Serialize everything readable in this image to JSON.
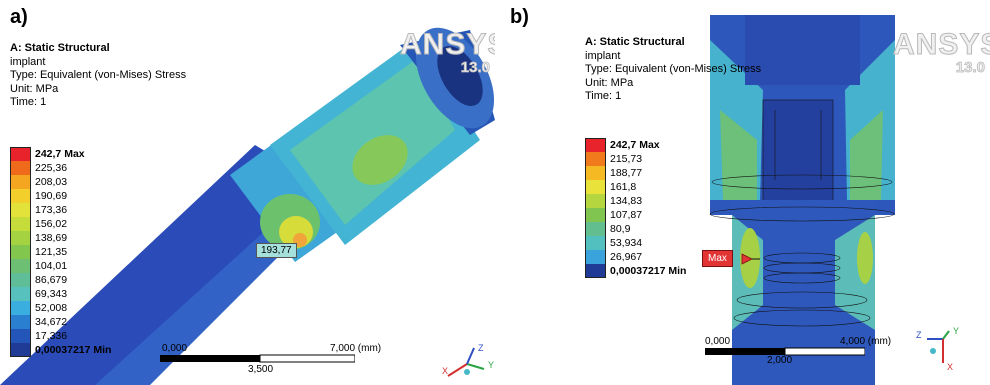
{
  "panels": [
    {
      "label": "a)",
      "header": {
        "analysis": "A: Static Structural",
        "model": "implant",
        "type": "Type: Equivalent (von-Mises) Stress",
        "unit": "Unit: MPa",
        "time": "Time: 1"
      },
      "legend": [
        {
          "value": "242,7 Max",
          "color": "#e8232b"
        },
        {
          "value": "225,36",
          "color": "#f06a1c"
        },
        {
          "value": "208,03",
          "color": "#f5a621"
        },
        {
          "value": "190,69",
          "color": "#f2cf2a"
        },
        {
          "value": "173,36",
          "color": "#e2e23a"
        },
        {
          "value": "156,02",
          "color": "#c6dc3a"
        },
        {
          "value": "138,69",
          "color": "#a5d240"
        },
        {
          "value": "121,35",
          "color": "#83c64e"
        },
        {
          "value": "104,01",
          "color": "#6dbf73"
        },
        {
          "value": "86,679",
          "color": "#5fbd98"
        },
        {
          "value": "69,343",
          "color": "#56c1bd"
        },
        {
          "value": "52,008",
          "color": "#3aafdf"
        },
        {
          "value": "34,672",
          "color": "#2a7fd0"
        },
        {
          "value": "17,336",
          "color": "#2356b8"
        },
        {
          "value": "0,00037217 Min",
          "color": "#1f3b96"
        }
      ],
      "logo": {
        "brand": "ANSYS",
        "version": "13.0"
      },
      "probe": "193,77",
      "scale": {
        "start": "0,000",
        "mid": "3,500",
        "end": "7,000 (mm)"
      },
      "triad": {
        "x": "X",
        "y": "Y",
        "z": "Z"
      }
    },
    {
      "label": "b)",
      "header": {
        "analysis": "A: Static Structural",
        "model": "implant",
        "type": "Type: Equivalent (von-Mises) Stress",
        "unit": "Unit: MPa",
        "time": "Time: 1"
      },
      "legend": [
        {
          "value": "242,7 Max",
          "color": "#e8232b"
        },
        {
          "value": "215,73",
          "color": "#f07a1c"
        },
        {
          "value": "188,77",
          "color": "#f5ba23"
        },
        {
          "value": "161,8",
          "color": "#e8e23a"
        },
        {
          "value": "134,83",
          "color": "#b5d63e"
        },
        {
          "value": "107,87",
          "color": "#7fc54f"
        },
        {
          "value": "80,9",
          "color": "#62be8f"
        },
        {
          "value": "53,934",
          "color": "#53c0c0"
        },
        {
          "value": "26,967",
          "color": "#3aa3dc"
        },
        {
          "value": "0,00037217 Min",
          "color": "#1f3b96"
        }
      ],
      "logo": {
        "brand": "ANSYS",
        "version": "13.0"
      },
      "max_tag": "Max",
      "scale": {
        "start": "0,000",
        "mid": "2,000",
        "end": "4,000 (mm)"
      },
      "triad": {
        "x": "X",
        "y": "Y",
        "z": "Z"
      }
    }
  ]
}
